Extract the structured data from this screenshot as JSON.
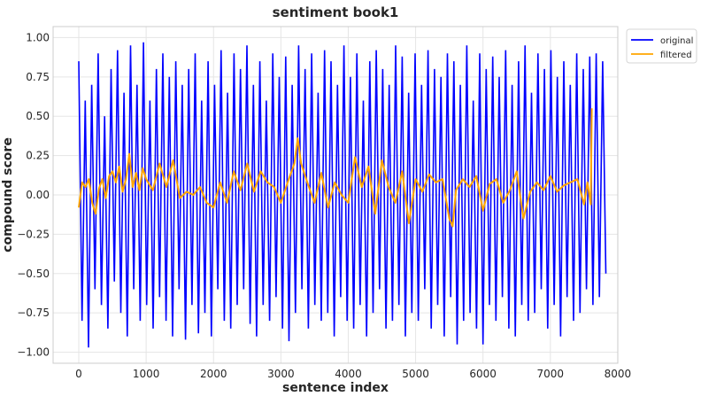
{
  "chart_data": {
    "type": "line",
    "title": "sentiment book1",
    "xlabel": "sentence index",
    "ylabel": "compound score",
    "xlim": [
      -381,
      8001
    ],
    "ylim": [
      -1.07,
      1.07
    ],
    "xticks": [
      0,
      1000,
      2000,
      3000,
      4000,
      5000,
      6000,
      7000,
      8000
    ],
    "xtick_labels": [
      "0",
      "1000",
      "2000",
      "3000",
      "4000",
      "5000",
      "6000",
      "7000",
      "8000"
    ],
    "yticks": [
      1.0,
      0.75,
      0.5,
      0.25,
      0.0,
      -0.25,
      -0.5,
      -0.75,
      -1.0
    ],
    "ytick_labels": [
      "1.00",
      "0.75",
      "0.50",
      "0.25",
      "0.00",
      "−0.25",
      "−0.50",
      "−0.75",
      "−1.00"
    ],
    "grid": true,
    "legend_position": "outside-top-right",
    "series": [
      {
        "name": "original",
        "color": "#0000ff",
        "x_start": 0,
        "x_step": 48,
        "values": [
          0.85,
          -0.8,
          0.6,
          -0.97,
          0.7,
          -0.6,
          0.9,
          -0.7,
          0.5,
          -0.85,
          0.8,
          -0.55,
          0.92,
          -0.75,
          0.65,
          -0.9,
          0.95,
          -0.6,
          0.7,
          -0.8,
          0.97,
          -0.7,
          0.6,
          -0.85,
          0.8,
          -0.65,
          0.9,
          -0.8,
          0.75,
          -0.9,
          0.85,
          -0.6,
          0.7,
          -0.92,
          0.8,
          -0.7,
          0.9,
          -0.88,
          0.6,
          -0.75,
          0.85,
          -0.9,
          0.7,
          -0.6,
          0.92,
          -0.8,
          0.65,
          -0.85,
          0.9,
          -0.7,
          0.8,
          -0.6,
          0.95,
          -0.82,
          0.7,
          -0.9,
          0.85,
          -0.7,
          0.6,
          -0.8,
          0.9,
          -0.65,
          0.75,
          -0.85,
          0.88,
          -0.93,
          0.7,
          -0.75,
          0.95,
          -0.6,
          0.8,
          -0.85,
          0.9,
          -0.7,
          0.65,
          -0.8,
          0.92,
          -0.75,
          0.85,
          -0.9,
          0.7,
          -0.65,
          0.95,
          -0.8,
          0.75,
          -0.85,
          0.9,
          -0.7,
          0.6,
          -0.9,
          0.85,
          -0.75,
          0.92,
          -0.6,
          0.8,
          -0.85,
          0.7,
          -0.8,
          0.95,
          -0.7,
          0.88,
          -0.9,
          0.65,
          -0.75,
          0.9,
          -0.8,
          0.7,
          -0.6,
          0.92,
          -0.85,
          0.8,
          -0.7,
          0.75,
          -0.9,
          0.9,
          -0.65,
          0.85,
          -0.95,
          0.7,
          -0.8,
          0.95,
          -0.75,
          0.6,
          -0.85,
          0.9,
          -0.95,
          0.8,
          -0.7,
          0.88,
          -0.8,
          0.75,
          -0.65,
          0.92,
          -0.85,
          0.7,
          -0.9,
          0.85,
          -0.7,
          0.95,
          -0.8,
          0.65,
          -0.75,
          0.9,
          -0.6,
          0.8,
          -0.85,
          0.92,
          -0.7,
          0.75,
          -0.9,
          0.85,
          -0.65,
          0.7,
          -0.8,
          0.9,
          -0.75,
          0.8,
          -0.6,
          0.88,
          -0.7,
          0.9,
          -0.65,
          0.85,
          -0.5
        ]
      },
      {
        "name": "filtered",
        "color": "#ffa500",
        "x": [
          0,
          50,
          100,
          150,
          200,
          250,
          300,
          350,
          400,
          450,
          500,
          550,
          600,
          650,
          700,
          750,
          800,
          850,
          900,
          950,
          1000,
          1100,
          1200,
          1300,
          1400,
          1500,
          1600,
          1700,
          1800,
          1900,
          2000,
          2100,
          2200,
          2300,
          2400,
          2500,
          2600,
          2700,
          2800,
          2900,
          3000,
          3100,
          3200,
          3250,
          3300,
          3400,
          3500,
          3600,
          3700,
          3800,
          3900,
          4000,
          4100,
          4200,
          4300,
          4400,
          4500,
          4600,
          4700,
          4800,
          4900,
          5000,
          5100,
          5200,
          5300,
          5400,
          5500,
          5550,
          5600,
          5700,
          5800,
          5900,
          6000,
          6100,
          6200,
          6300,
          6400,
          6500,
          6600,
          6700,
          6800,
          6900,
          7000,
          7100,
          7200,
          7300,
          7400,
          7500,
          7550,
          7600,
          7615
        ],
        "values": [
          -0.08,
          0.08,
          0.05,
          0.1,
          -0.05,
          -0.12,
          0.04,
          0.1,
          -0.02,
          0.12,
          0.15,
          0.08,
          0.18,
          0.02,
          0.1,
          0.26,
          0.05,
          0.14,
          0.03,
          0.17,
          0.1,
          0.03,
          0.2,
          0.05,
          0.22,
          -0.02,
          0.02,
          0.0,
          0.05,
          -0.05,
          -0.08,
          0.08,
          -0.05,
          0.15,
          0.03,
          0.2,
          0.02,
          0.15,
          0.08,
          0.05,
          -0.05,
          0.08,
          0.2,
          0.36,
          0.2,
          0.07,
          -0.05,
          0.14,
          -0.08,
          0.08,
          0.0,
          -0.05,
          0.24,
          0.05,
          0.18,
          -0.12,
          0.22,
          0.05,
          -0.05,
          0.15,
          -0.18,
          0.1,
          0.02,
          0.13,
          0.08,
          0.1,
          -0.15,
          -0.2,
          0.03,
          0.1,
          0.05,
          0.12,
          -0.1,
          0.07,
          0.1,
          -0.05,
          0.03,
          0.15,
          -0.15,
          0.02,
          0.08,
          0.03,
          0.12,
          0.02,
          0.06,
          0.08,
          0.1,
          -0.06,
          0.08,
          -0.06,
          0.55
        ]
      }
    ]
  }
}
